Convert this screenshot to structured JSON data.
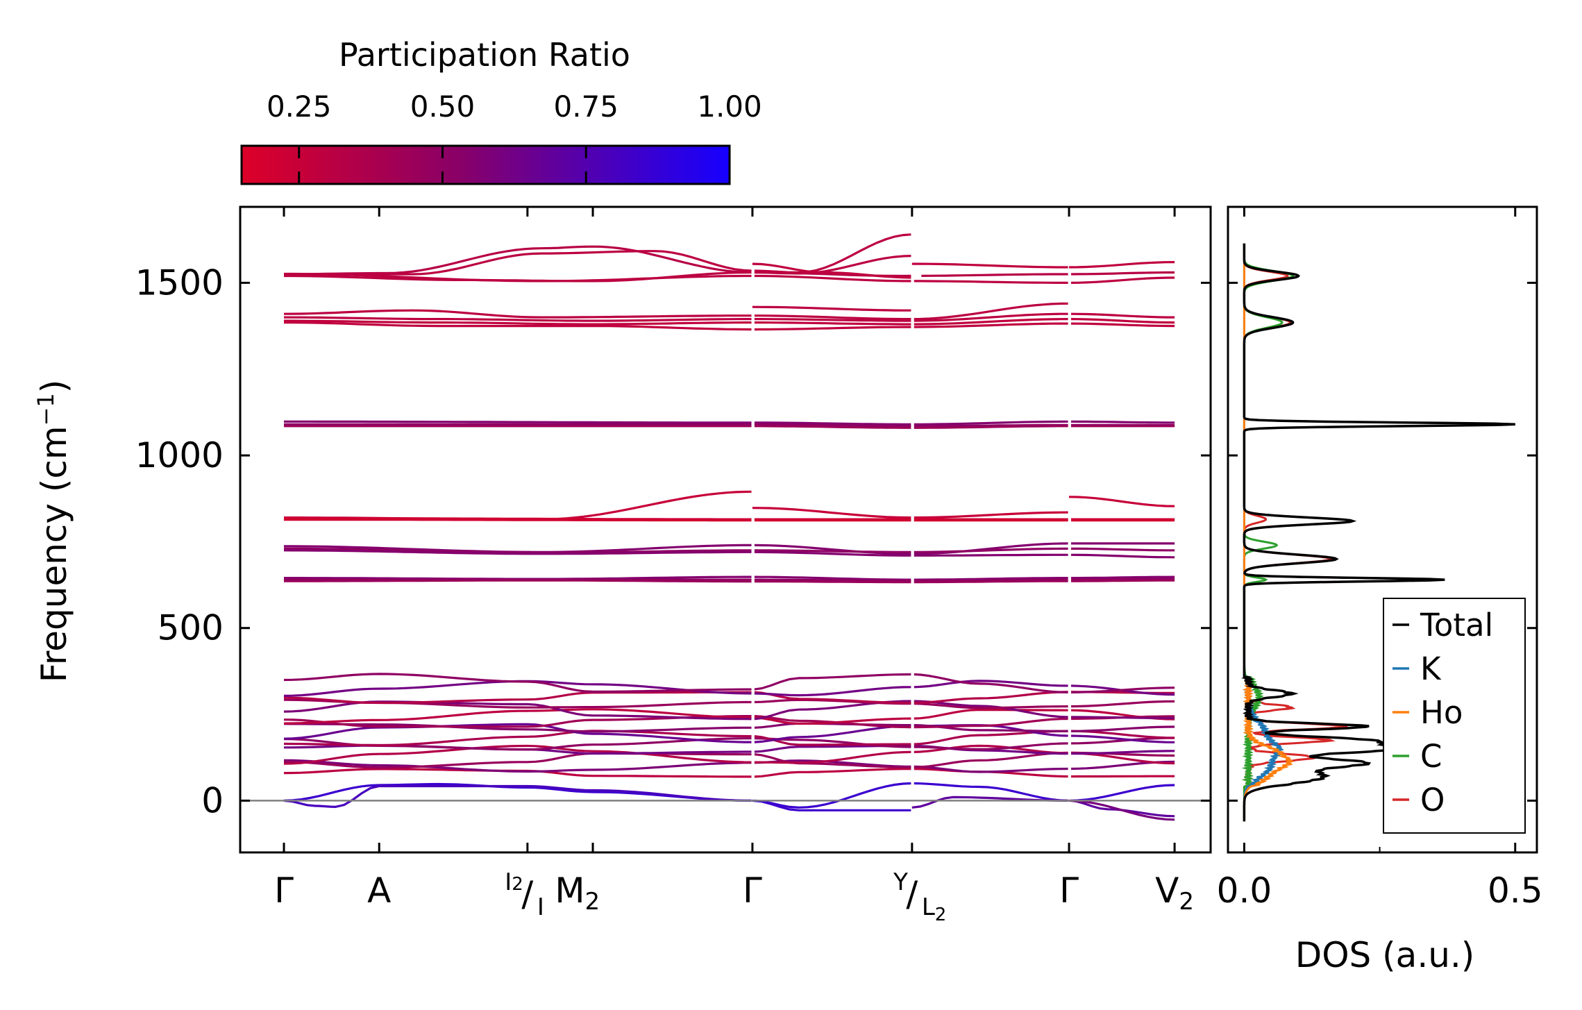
{
  "chart_data": {
    "type": "line",
    "colorbar": {
      "title": "Participation Ratio",
      "ticks": [
        0.25,
        0.5,
        0.75,
        1.0
      ],
      "tick_labels": [
        "0.25",
        "0.50",
        "0.75",
        "1.00"
      ],
      "range": [
        0.15,
        1.0
      ],
      "colors": {
        "low": "#dd0028",
        "mid": "#880068",
        "high": "#1600ff"
      }
    },
    "band_panel": {
      "ylabel": "Frequency (cm",
      "ylabel_sup": "−1",
      "ylabel_close": ")",
      "ylim": [
        -150,
        1720
      ],
      "yticks": [
        0,
        500,
        1000,
        1500
      ],
      "ytick_labels": [
        "0",
        "500",
        "1000",
        "1500"
      ],
      "kpath": {
        "positions": [
          0,
          0.185,
          0.473,
          0.6,
          0.91,
          1.22,
          1.525,
          1.73
        ],
        "labels": [
          {
            "x": 0.0,
            "main": "Γ"
          },
          {
            "x": 0.185,
            "main": "A"
          },
          {
            "x": 0.57,
            "main": "M",
            "sub": "2"
          },
          {
            "x": 0.91,
            "main": "Γ"
          },
          {
            "x": 1.525,
            "main": "Γ"
          },
          {
            "x": 1.73,
            "main": "V",
            "sub": "2"
          }
        ],
        "split_labels": [
          {
            "x": 0.473,
            "top": "I",
            "top_sub": "2",
            "bottom": "I"
          },
          {
            "x": 1.22,
            "top": "Y",
            "bottom": "L",
            "bottom_sub": "2"
          }
        ],
        "xlim": [
          -0.085,
          1.8
        ]
      },
      "segments": [
        [
          0.0,
          0.91
        ],
        [
          0.91,
          1.22
        ],
        [
          1.22,
          1.525
        ],
        [
          1.525,
          1.73
        ]
      ],
      "optical_bands": [
        {
          "nodes": [
            [
              0.0,
              1525
            ],
            [
              0.2,
              1528
            ],
            [
              0.5,
              1600
            ],
            [
              0.6,
              1605
            ],
            [
              0.91,
              1530
            ],
            [
              1.2,
              1520
            ],
            [
              1.525,
              1525
            ],
            [
              1.73,
              1530
            ]
          ],
          "pr": 0.32
        },
        {
          "nodes": [
            [
              0.0,
              1522
            ],
            [
              0.25,
              1525
            ],
            [
              0.5,
              1585
            ],
            [
              0.72,
              1592
            ],
            [
              0.91,
              1535
            ],
            [
              1.0,
              1530
            ],
            [
              1.22,
              1640
            ]
          ],
          "pr": 0.3
        },
        {
          "nodes": [
            [
              0.0,
              1520
            ],
            [
              0.35,
              1508
            ],
            [
              0.6,
              1505
            ],
            [
              0.91,
              1530
            ],
            [
              1.0,
              1527
            ],
            [
              1.22,
              1578
            ]
          ],
          "pr": 0.3
        },
        {
          "nodes": [
            [
              0.91,
              1555
            ],
            [
              1.05,
              1530
            ],
            [
              1.22,
              1515
            ]
          ],
          "pr": 0.28
        },
        {
          "nodes": [
            [
              0.0,
              1526
            ],
            [
              0.5,
              1505
            ],
            [
              0.91,
              1520
            ],
            [
              1.22,
              1505
            ],
            [
              1.525,
              1500
            ],
            [
              1.73,
              1515
            ]
          ],
          "pr": 0.3
        },
        {
          "nodes": [
            [
              1.22,
              1555
            ],
            [
              1.525,
              1545
            ]
          ],
          "pr": 0.28
        },
        {
          "nodes": [
            [
              1.525,
              1545
            ],
            [
              1.73,
              1560
            ]
          ],
          "pr": 0.28
        },
        {
          "nodes": [
            [
              0.0,
              1410
            ],
            [
              0.25,
              1420
            ],
            [
              0.5,
              1400
            ],
            [
              0.91,
              1405
            ],
            [
              1.22,
              1395
            ],
            [
              1.525,
              1440
            ]
          ],
          "pr": 0.3
        },
        {
          "nodes": [
            [
              0.0,
              1400
            ],
            [
              0.3,
              1395
            ],
            [
              0.6,
              1390
            ],
            [
              0.91,
              1395
            ],
            [
              1.22,
              1390
            ],
            [
              1.525,
              1410
            ],
            [
              1.73,
              1400
            ]
          ],
          "pr": 0.3
        },
        {
          "nodes": [
            [
              0.0,
              1390
            ],
            [
              0.3,
              1385
            ],
            [
              0.6,
              1380
            ],
            [
              0.91,
              1385
            ],
            [
              1.22,
              1380
            ],
            [
              1.525,
              1395
            ],
            [
              1.73,
              1385
            ]
          ],
          "pr": 0.28
        },
        {
          "nodes": [
            [
              0.0,
              1385
            ],
            [
              0.3,
              1375
            ],
            [
              0.6,
              1375
            ],
            [
              0.91,
              1365
            ],
            [
              1.22,
              1372
            ],
            [
              1.525,
              1382
            ],
            [
              1.73,
              1375
            ]
          ],
          "pr": 0.28
        },
        {
          "nodes": [
            [
              0.91,
              1430
            ],
            [
              1.22,
              1420
            ]
          ],
          "pr": 0.3
        },
        {
          "nodes": [
            [
              0.0,
              1098
            ],
            [
              0.91,
              1095
            ],
            [
              1.22,
              1090
            ],
            [
              1.525,
              1098
            ],
            [
              1.73,
              1095
            ]
          ],
          "pr": 0.55
        },
        {
          "nodes": [
            [
              0.0,
              1090
            ],
            [
              0.91,
              1090
            ],
            [
              1.22,
              1085
            ],
            [
              1.525,
              1088
            ],
            [
              1.73,
              1088
            ]
          ],
          "pr": 0.5
        },
        {
          "nodes": [
            [
              0.0,
              1085
            ],
            [
              0.91,
              1085
            ],
            [
              1.22,
              1080
            ],
            [
              1.525,
              1085
            ],
            [
              1.73,
              1085
            ]
          ],
          "pr": 0.45
        },
        {
          "nodes": [
            [
              0.0,
              820
            ],
            [
              0.5,
              815
            ],
            [
              0.91,
              895
            ]
          ],
          "pr": 0.25
        },
        {
          "nodes": [
            [
              0.91,
              848
            ],
            [
              1.22,
              820
            ],
            [
              1.525,
              835
            ]
          ],
          "pr": 0.25
        },
        {
          "nodes": [
            [
              1.525,
              880
            ],
            [
              1.73,
              853
            ]
          ],
          "pr": 0.25
        },
        {
          "nodes": [
            [
              0.0,
              818
            ],
            [
              0.91,
              815
            ],
            [
              1.22,
              815
            ],
            [
              1.525,
              815
            ],
            [
              1.73,
              815
            ]
          ],
          "pr": 0.22
        },
        {
          "nodes": [
            [
              0.0,
              814
            ],
            [
              0.91,
              812
            ],
            [
              1.22,
              812
            ],
            [
              1.525,
              812
            ],
            [
              1.73,
              812
            ]
          ],
          "pr": 0.2
        },
        {
          "nodes": [
            [
              0.0,
              737
            ],
            [
              0.5,
              720
            ],
            [
              0.91,
              740
            ],
            [
              1.22,
              715
            ],
            [
              1.525,
              745
            ],
            [
              1.73,
              745
            ]
          ],
          "pr": 0.55
        },
        {
          "nodes": [
            [
              0.0,
              730
            ],
            [
              0.5,
              718
            ],
            [
              0.91,
              725
            ],
            [
              1.22,
              720
            ],
            [
              1.525,
              730
            ],
            [
              1.73,
              725
            ]
          ],
          "pr": 0.5
        },
        {
          "nodes": [
            [
              0.0,
              725
            ],
            [
              0.5,
              715
            ],
            [
              0.91,
              720
            ],
            [
              1.22,
              710
            ],
            [
              1.525,
              712
            ],
            [
              1.73,
              705
            ]
          ],
          "pr": 0.55
        },
        {
          "nodes": [
            [
              0.0,
              645
            ],
            [
              0.5,
              642
            ],
            [
              0.91,
              648
            ],
            [
              1.22,
              640
            ],
            [
              1.525,
              645
            ],
            [
              1.73,
              648
            ]
          ],
          "pr": 0.55
        },
        {
          "nodes": [
            [
              0.0,
              640
            ],
            [
              0.5,
              640
            ],
            [
              0.91,
              640
            ],
            [
              1.22,
              637
            ],
            [
              1.525,
              640
            ],
            [
              1.73,
              642
            ]
          ],
          "pr": 0.5
        },
        {
          "nodes": [
            [
              0.0,
              636
            ],
            [
              0.5,
              638
            ],
            [
              0.91,
              635
            ],
            [
              1.22,
              633
            ],
            [
              1.525,
              636
            ],
            [
              1.73,
              638
            ]
          ],
          "pr": 0.45
        }
      ],
      "acoustic_bands": [
        {
          "nodes": [
            [
              0.0,
              0
            ],
            [
              0.185,
              45
            ],
            [
              0.3,
              48
            ],
            [
              0.473,
              38
            ],
            [
              0.6,
              25
            ],
            [
              0.91,
              0
            ],
            [
              1.0,
              -20
            ],
            [
              1.22,
              50
            ],
            [
              1.35,
              40
            ],
            [
              1.525,
              0
            ],
            [
              1.73,
              45
            ]
          ],
          "pr": 0.85
        },
        {
          "nodes": [
            [
              0.0,
              0
            ],
            [
              0.06,
              -15
            ],
            [
              0.1,
              -18
            ],
            [
              0.185,
              42
            ],
            [
              0.473,
              42
            ],
            [
              0.6,
              30
            ],
            [
              0.91,
              0
            ]
          ],
          "pr": 0.8
        },
        {
          "nodes": [
            [
              0.91,
              0
            ],
            [
              1.0,
              -28
            ],
            [
              1.22,
              -28
            ]
          ],
          "pr": 0.85
        },
        {
          "nodes": [
            [
              1.22,
              -20
            ],
            [
              1.3,
              10
            ],
            [
              1.525,
              0
            ],
            [
              1.6,
              -25
            ],
            [
              1.73,
              -45
            ]
          ],
          "pr": 0.7
        },
        {
          "nodes": [
            [
              1.525,
              0
            ],
            [
              1.73,
              -55
            ]
          ],
          "pr": 0.6
        }
      ],
      "low_band_base": [
        80,
        100,
        118,
        132,
        148,
        165,
        180,
        196,
        212,
        228,
        245,
        262,
        280,
        300,
        325,
        340
      ]
    },
    "dos_panel": {
      "xlabel": "DOS (a.u.)",
      "xlim": [
        -0.03,
        0.54
      ],
      "xticks": [
        0.0,
        0.5
      ],
      "xtick_labels": [
        "0.0",
        "0.5"
      ],
      "ylim": [
        -150,
        1720
      ],
      "legend": {
        "position": "lower-right",
        "entries": [
          "Total",
          "K",
          "Ho",
          "C",
          "O"
        ],
        "colors": [
          "#000000",
          "#1f77b4",
          "#ff7f0e",
          "#2ca02c",
          "#d62728"
        ]
      },
      "series": [
        {
          "name": "O",
          "peaks": [
            [
              1520,
              0.08,
              12
            ],
            [
              1385,
              0.085,
              15
            ],
            [
              1090,
              0.5,
              5
            ],
            [
              815,
              0.04,
              10
            ],
            [
              700,
              0.16,
              12
            ],
            [
              640,
              0.36,
              5
            ],
            [
              215,
              0.18,
              8
            ],
            [
              175,
              0.15,
              8
            ],
            [
              125,
              0.12,
              10
            ],
            [
              310,
              0.08,
              10
            ],
            [
              270,
              0.08,
              8
            ]
          ]
        },
        {
          "name": "C",
          "peaks": [
            [
              1520,
              0.09,
              14
            ],
            [
              1385,
              0.07,
              15
            ],
            [
              810,
              0.2,
              10
            ],
            [
              740,
              0.06,
              10
            ],
            [
              640,
              0.04,
              6
            ],
            [
              300,
              0.02,
              30
            ]
          ]
        },
        {
          "name": "K",
          "peaks": [
            [
              100,
              0.04,
              30
            ],
            [
              200,
              0.03,
              30
            ],
            [
              150,
              0.04,
              20
            ]
          ]
        },
        {
          "name": "Ho",
          "peaks": [
            [
              80,
              0.04,
              25
            ],
            [
              140,
              0.05,
              20
            ],
            [
              110,
              0.04,
              15
            ]
          ]
        },
        {
          "name": "Total",
          "peaks": [
            [
              1520,
              0.1,
              12
            ],
            [
              1385,
              0.09,
              15
            ],
            [
              1090,
              0.5,
              5
            ],
            [
              810,
              0.2,
              10
            ],
            [
              700,
              0.17,
              12
            ],
            [
              640,
              0.37,
              5
            ],
            [
              310,
              0.08,
              10
            ],
            [
              215,
              0.22,
              8
            ],
            [
              175,
              0.2,
              10
            ],
            [
              150,
              0.27,
              12
            ],
            [
              110,
              0.2,
              12
            ],
            [
              70,
              0.14,
              20
            ]
          ]
        }
      ]
    }
  }
}
